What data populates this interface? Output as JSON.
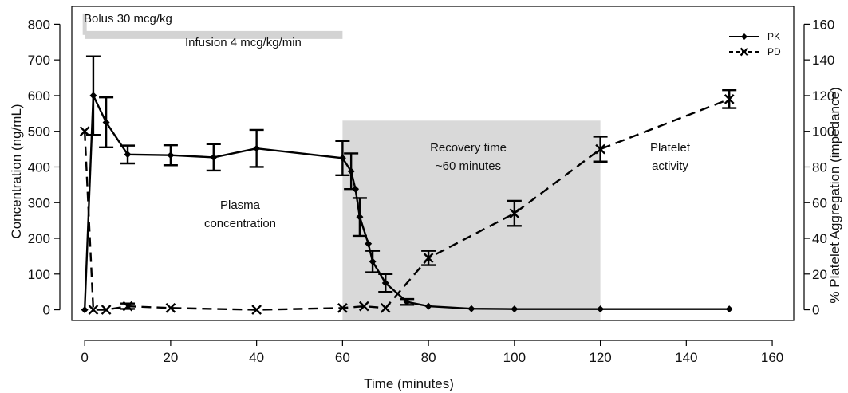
{
  "chart_data": {
    "type": "line",
    "xlabel": "Time (minutes)",
    "ylabel_left": "Concentration (ng/mL)",
    "ylabel_right": "% Platelet Aggregation (impedance)",
    "xlim": [
      -3,
      165
    ],
    "xticks": [
      0,
      20,
      40,
      60,
      80,
      100,
      120,
      140,
      160
    ],
    "ylim_left": [
      -30,
      850
    ],
    "yticks_left": [
      0,
      100,
      200,
      300,
      400,
      500,
      600,
      700,
      800
    ],
    "ylim_right": [
      -6,
      170
    ],
    "yticks_right": [
      0,
      20,
      40,
      60,
      80,
      100,
      120,
      140,
      160
    ],
    "grid": false,
    "legend_position": "top-right",
    "annotations": {
      "bolus": "Bolus 30 mcg/kg",
      "infusion": "Infusion 4 mcg/kg/min",
      "plasma_line1": "Plasma",
      "plasma_line2": "concentration",
      "recovery_line1": "Recovery time",
      "recovery_line2": "~60 minutes",
      "platelet_line1": "Platelet",
      "platelet_line2": "activity"
    },
    "bolus_marker": {
      "x": 0,
      "y": 830
    },
    "infusion_bar": {
      "x_start": 0,
      "x_end": 60,
      "y": 770
    },
    "recovery_region": {
      "x_start": 60,
      "x_end": 120,
      "y_top": 530
    },
    "series": [
      {
        "name": "PK",
        "axis": "left",
        "style": "solid",
        "marker": "diamond",
        "color": "#000000",
        "points": [
          {
            "x": 0,
            "y": 0
          },
          {
            "x": 2,
            "y": 600,
            "err": 110
          },
          {
            "x": 5,
            "y": 525,
            "err": 70
          },
          {
            "x": 10,
            "y": 435,
            "err": 25
          },
          {
            "x": 20,
            "y": 433,
            "err": 28
          },
          {
            "x": 30,
            "y": 427,
            "err": 37
          },
          {
            "x": 40,
            "y": 452,
            "err": 52
          },
          {
            "x": 60,
            "y": 425,
            "err": 48
          },
          {
            "x": 62,
            "y": 388,
            "err": 50
          },
          {
            "x": 63,
            "y": 338
          },
          {
            "x": 64,
            "y": 260,
            "err": 53
          },
          {
            "x": 66,
            "y": 185
          },
          {
            "x": 67,
            "y": 135,
            "err": 30
          },
          {
            "x": 70,
            "y": 75,
            "err": 25
          },
          {
            "x": 75,
            "y": 22,
            "err": 8
          },
          {
            "x": 80,
            "y": 10
          },
          {
            "x": 90,
            "y": 3
          },
          {
            "x": 100,
            "y": 2
          },
          {
            "x": 120,
            "y": 2
          },
          {
            "x": 150,
            "y": 2
          }
        ]
      },
      {
        "name": "PD",
        "axis": "right",
        "style": "dashed",
        "marker": "x",
        "color": "#000000",
        "points": [
          {
            "x": 0,
            "y": 100
          },
          {
            "x": 2,
            "y": 0
          },
          {
            "x": 5,
            "y": 0
          },
          {
            "x": 10,
            "y": 2,
            "err": 1.5
          },
          {
            "x": 20,
            "y": 1
          },
          {
            "x": 40,
            "y": 0
          },
          {
            "x": 60,
            "y": 1
          },
          {
            "x": 65,
            "y": 2
          },
          {
            "x": 70,
            "y": 1
          },
          {
            "x": 80,
            "y": 29,
            "err": 4
          },
          {
            "x": 100,
            "y": 54,
            "err": 7
          },
          {
            "x": 120,
            "y": 90,
            "err": 7
          },
          {
            "x": 150,
            "y": 118,
            "err": 5
          }
        ]
      }
    ]
  }
}
